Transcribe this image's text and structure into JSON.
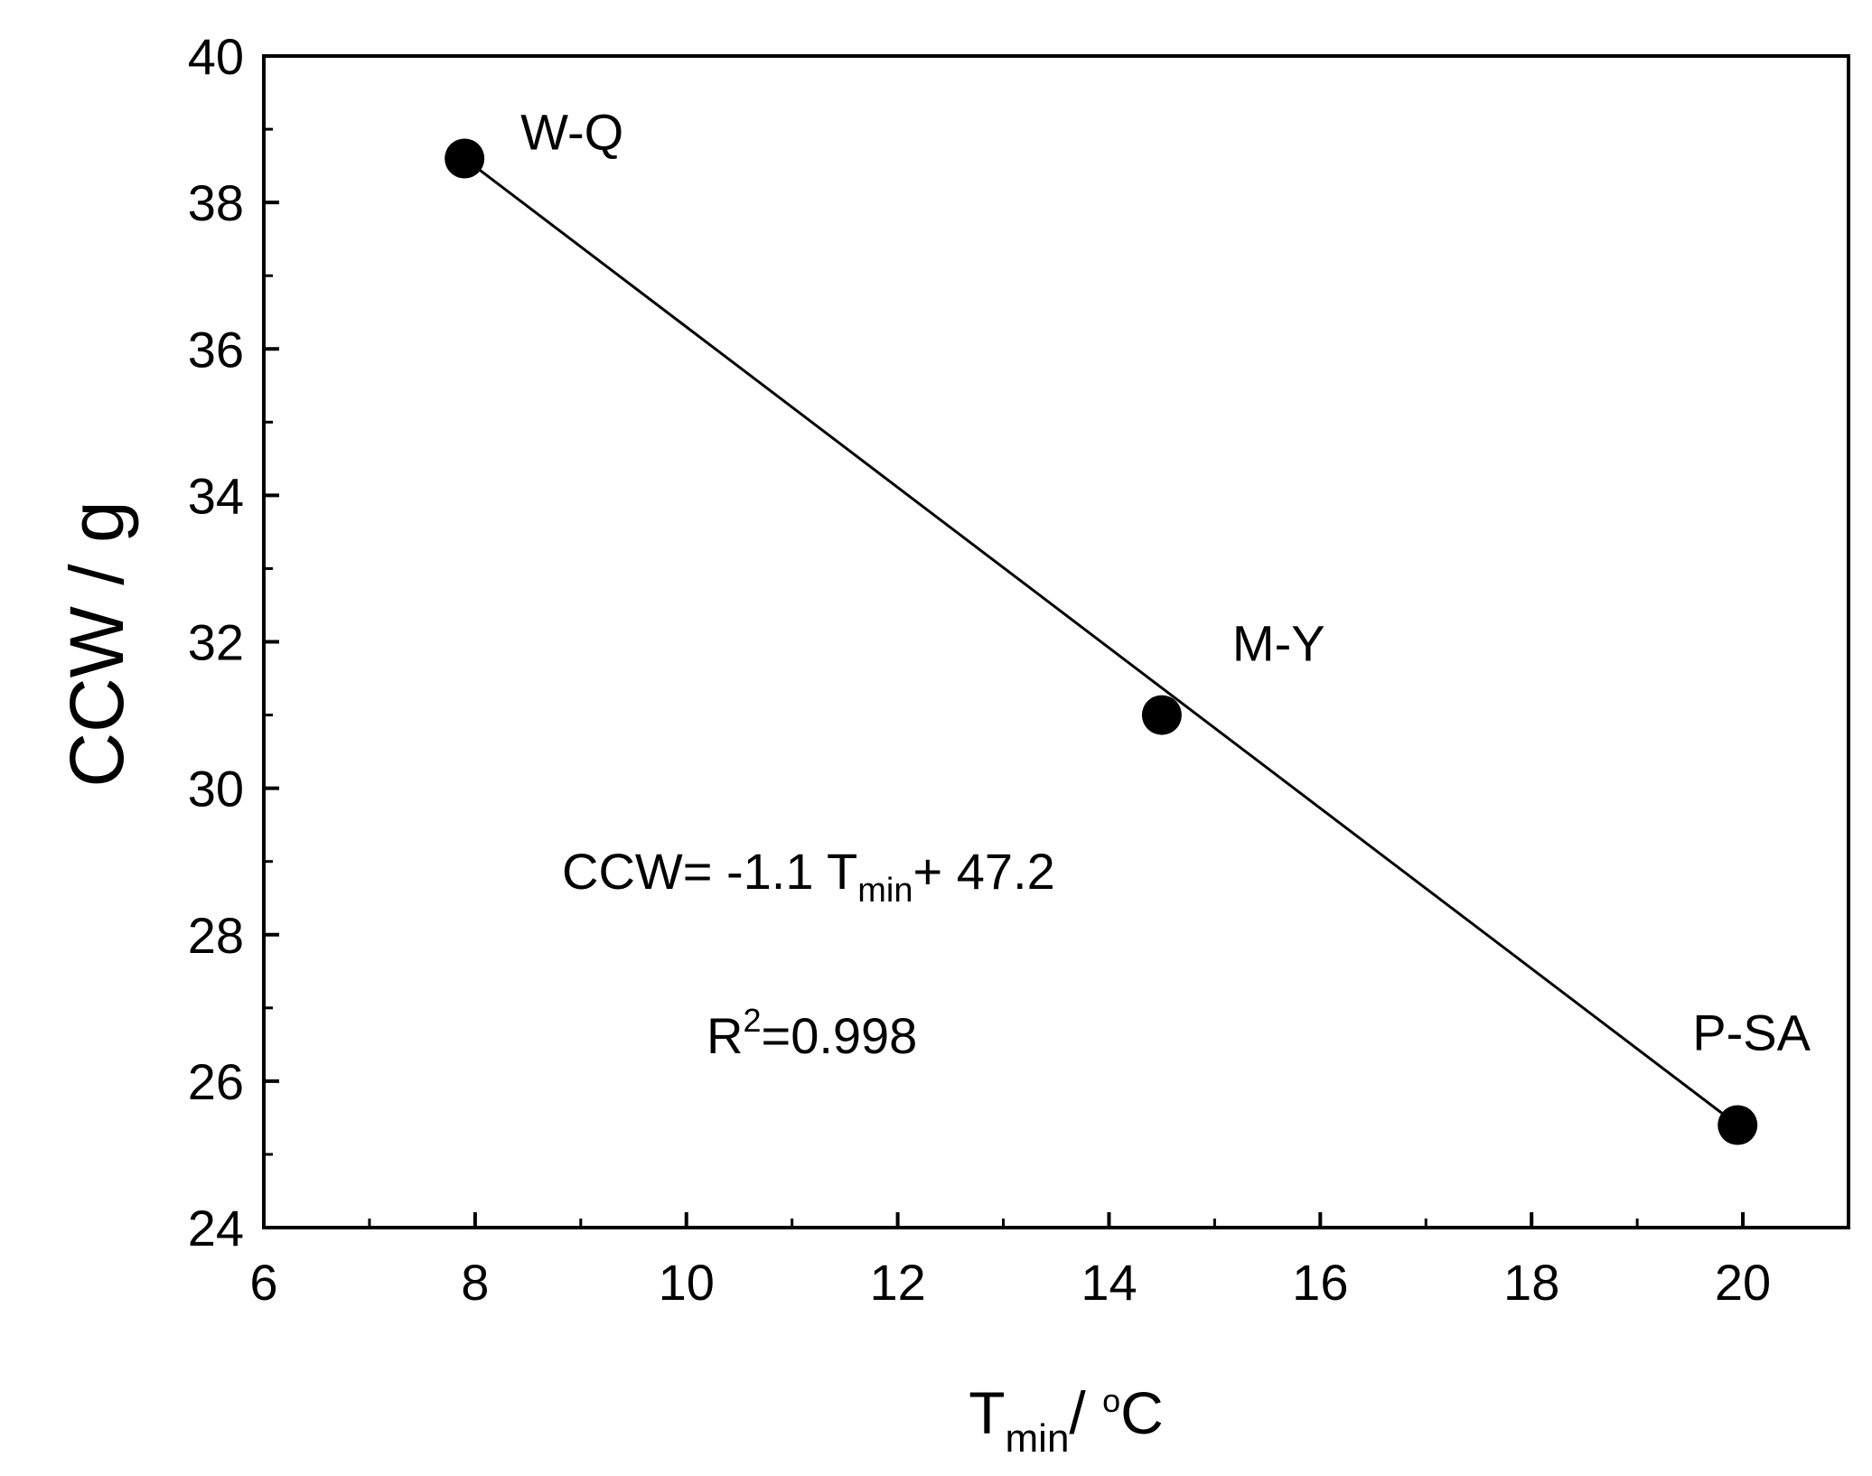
{
  "chart_data": {
    "type": "scatter",
    "xlabel": {
      "main": "T",
      "sub": "min",
      "unit_pre": "/ ",
      "unit_sup": "o",
      "unit_post": "C"
    },
    "ylabel": "CCW / g",
    "xlim": [
      6,
      21
    ],
    "ylim": [
      24,
      40
    ],
    "x_ticks": [
      "6",
      "8",
      "10",
      "12",
      "14",
      "16",
      "18",
      "20"
    ],
    "y_ticks": [
      "24",
      "26",
      "28",
      "30",
      "32",
      "34",
      "36",
      "38",
      "40"
    ],
    "series": [
      {
        "points": [
          {
            "label": "W-Q",
            "x": 7.9,
            "y": 38.6
          },
          {
            "label": "M-Y",
            "x": 14.5,
            "y": 31.0
          },
          {
            "label": "P-SA",
            "x": 19.95,
            "y": 25.4
          }
        ]
      }
    ],
    "fit": {
      "slope": -1.1,
      "intercept": 47.2,
      "x_range": [
        7.9,
        19.95
      ],
      "y_range": [
        38.6,
        25.4
      ]
    },
    "annotations": {
      "equation": {
        "prefix": "CCW= -1.1 T",
        "sub": "min",
        "suffix": "+ 47.2"
      },
      "r2": {
        "main": "R",
        "sup": "2",
        "rest": "=0.998"
      }
    },
    "grid": false,
    "legend": "none",
    "colors": {
      "marker": "#000000",
      "line": "#000000",
      "axis": "#000000"
    }
  }
}
